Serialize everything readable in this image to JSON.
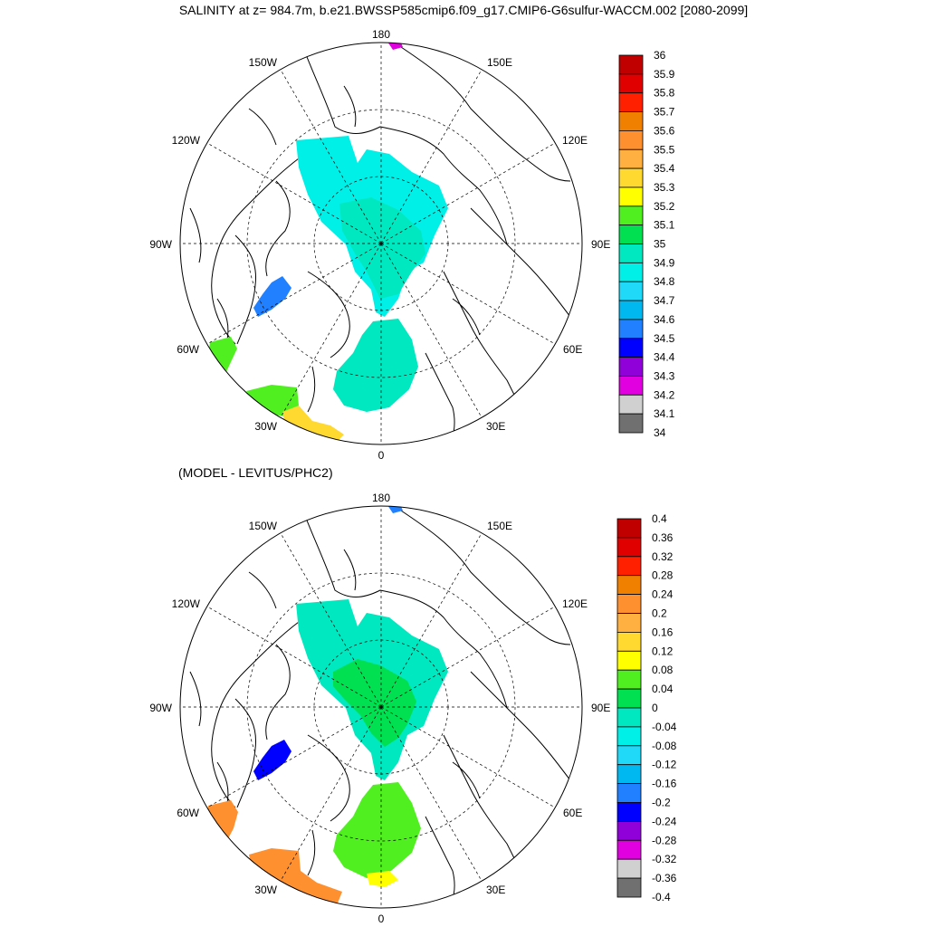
{
  "title": "SALINITY at z= 984.7m, b.e21.BWSSP585cmip6.f09_g17.CMIP6-G6sulfur-WACCM.002 [2080-2099]",
  "subtitle": "(MODEL - LEVITUS/PHC2)",
  "longitude_labels": [
    "180",
    "150E",
    "120E",
    "90E",
    "60E",
    "30E",
    "0",
    "30W",
    "60W",
    "90W",
    "120W",
    "150W"
  ],
  "colors": {
    "land_outline": "#000000",
    "missing": "#ffffff"
  },
  "maps": [
    {
      "name": "salinity",
      "colorbar": {
        "labels": [
          "36",
          "35.9",
          "35.8",
          "35.7",
          "35.6",
          "35.5",
          "35.4",
          "35.3",
          "35.2",
          "35.1",
          "35",
          "34.9",
          "34.8",
          "34.7",
          "34.6",
          "34.5",
          "34.4",
          "34.3",
          "34.2",
          "34.1",
          "34"
        ],
        "colors": [
          "#c00000",
          "#e00000",
          "#ff2000",
          "#f08000",
          "#ff9030",
          "#ffb040",
          "#ffd830",
          "#ffff00",
          "#50f020",
          "#00e050",
          "#00e8c0",
          "#00f0e8",
          "#20d8f8",
          "#00b8f0",
          "#2080ff",
          "#0000ff",
          "#9000d8",
          "#e000e0",
          "#d0d0d0",
          "#707070"
        ]
      },
      "regions": [
        {
          "name": "central-arctic",
          "level": "34.9",
          "color": "#00f0e8"
        },
        {
          "name": "canada-basin-core",
          "level": "35",
          "color": "#00e8c0"
        },
        {
          "name": "nordic-seas",
          "level": "35",
          "color": "#00e8c0"
        },
        {
          "name": "baffin-bay",
          "level": "34.6",
          "color": "#2080ff"
        },
        {
          "name": "labrador-sea",
          "level": "35.1",
          "color": "#50f020"
        },
        {
          "name": "north-atlantic-green",
          "level": "35.1",
          "color": "#50f020"
        },
        {
          "name": "north-atlantic-yellow",
          "level": "35.3",
          "color": "#ffd830"
        },
        {
          "name": "bering-spot",
          "level": "34.3",
          "color": "#e000e0"
        }
      ]
    },
    {
      "name": "difference",
      "colorbar": {
        "labels": [
          "0.4",
          "0.36",
          "0.32",
          "0.28",
          "0.24",
          "0.2",
          "0.16",
          "0.12",
          "0.08",
          "0.04",
          "0",
          "-0.04",
          "-0.08",
          "-0.12",
          "-0.16",
          "-0.2",
          "-0.24",
          "-0.28",
          "-0.32",
          "-0.36",
          "-0.4"
        ],
        "colors": [
          "#c00000",
          "#e00000",
          "#ff2000",
          "#f08000",
          "#ff9030",
          "#ffb040",
          "#ffd830",
          "#ffff00",
          "#50f020",
          "#00e050",
          "#00e8c0",
          "#00f0e8",
          "#20d8f8",
          "#00b8f0",
          "#2080ff",
          "#0000ff",
          "#9000d8",
          "#e000e0",
          "#d0d0d0",
          "#707070"
        ]
      },
      "regions": [
        {
          "name": "central-arctic",
          "level": "-0.04",
          "color": "#00e8c0"
        },
        {
          "name": "canada-basin-core",
          "level": "0",
          "color": "#00e050"
        },
        {
          "name": "nordic-seas",
          "level": "0.04",
          "color": "#50f020"
        },
        {
          "name": "baffin-bay",
          "level": "-0.2",
          "color": "#0000ff"
        },
        {
          "name": "labrador-sea",
          "level": "0.24",
          "color": "#ff9030"
        },
        {
          "name": "north-atlantic",
          "level": "0.24",
          "color": "#ff9030"
        },
        {
          "name": "norwegian-yellow",
          "level": "0.12",
          "color": "#ffff00"
        },
        {
          "name": "bering-spot",
          "level": "-0.16",
          "color": "#2080ff"
        }
      ]
    }
  ]
}
